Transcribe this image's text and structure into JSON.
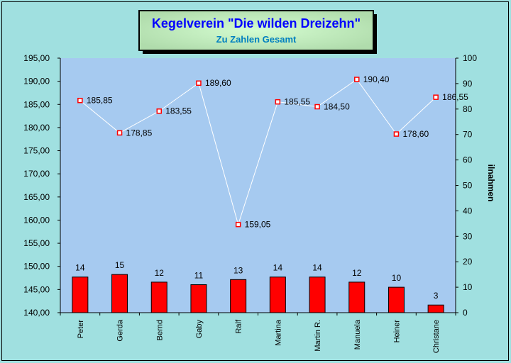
{
  "chart_data": {
    "type": "bar+line",
    "title": "Kegelverein \"Die wilden Dreizehn\"",
    "subtitle": "Zu Zahlen Gesamt",
    "categories": [
      "Peter",
      "Gerda",
      "Bernd",
      "Gaby",
      "Ralf",
      "Martina",
      "Martin R.",
      "Manuela",
      "Heiner",
      "Christane"
    ],
    "series": [
      {
        "type": "line",
        "axis": "left",
        "values": [
          185.85,
          178.85,
          183.55,
          189.6,
          159.05,
          185.55,
          184.5,
          190.4,
          178.6,
          186.55
        ],
        "labels": [
          "185,85",
          "178,85",
          "183,55",
          "189,60",
          "159,05",
          "185,55",
          "184,50",
          "190,40",
          "178,60",
          "186,55"
        ],
        "color": "#ffffff",
        "marker_color": "#ff0000"
      },
      {
        "type": "bar",
        "axis": "right",
        "values": [
          14,
          15,
          12,
          11,
          13,
          14,
          14,
          12,
          10,
          3
        ],
        "color": "#ff0000"
      }
    ],
    "left_axis": {
      "range": [
        140,
        195
      ],
      "step": 5,
      "tick_labels": [
        "140,00",
        "145,00",
        "150,00",
        "155,00",
        "160,00",
        "165,00",
        "170,00",
        "175,00",
        "180,00",
        "185,00",
        "190,00",
        "195,00"
      ]
    },
    "right_axis": {
      "range": [
        0,
        100
      ],
      "step": 10,
      "label": "ilnahmen",
      "tick_labels": [
        "0",
        "10",
        "20",
        "30",
        "40",
        "50",
        "60",
        "70",
        "80",
        "90",
        "100"
      ]
    },
    "plot_background": "#a6caf0",
    "chart_background": "#a0e0e0",
    "grid": false,
    "legend": "none"
  }
}
